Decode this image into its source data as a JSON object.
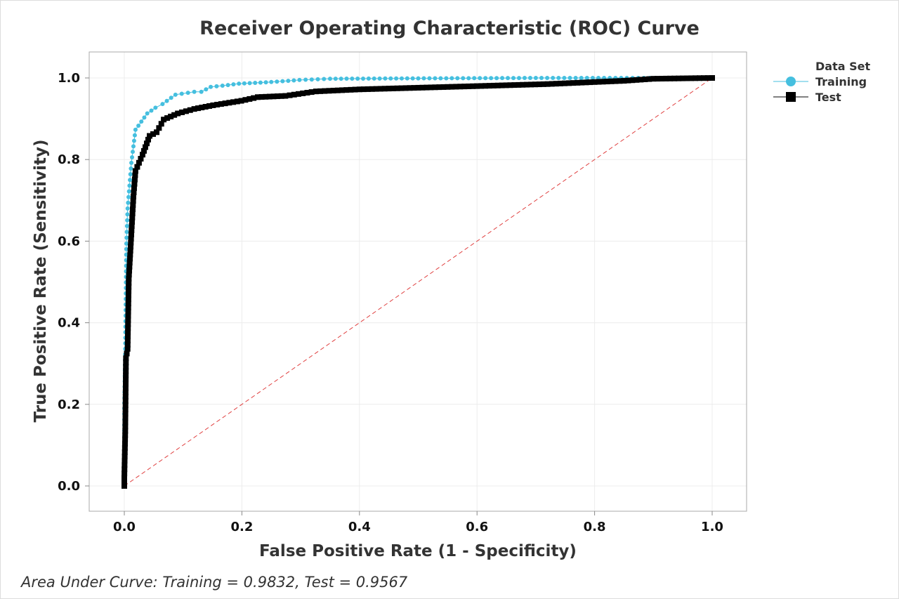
{
  "chart_data": {
    "type": "line",
    "title": "Receiver Operating Characteristic (ROC) Curve",
    "xlabel": "False Positive Rate (1 - Specificity)",
    "ylabel": "True Positive Rate (Sensitivity)",
    "xlim": [
      0,
      1
    ],
    "ylim": [
      0,
      1
    ],
    "xticks": [
      "0.0",
      "0.2",
      "0.4",
      "0.6",
      "0.8",
      "1.0"
    ],
    "yticks": [
      "0.0",
      "0.2",
      "0.4",
      "0.6",
      "0.8",
      "1.0"
    ],
    "grid": true,
    "legend": {
      "title": "Data Set",
      "position": "top-right outside"
    },
    "reference_line": {
      "x": [
        0,
        1
      ],
      "y": [
        0,
        1
      ],
      "color": "#e04040",
      "style": "dashed"
    },
    "series": [
      {
        "name": "Training",
        "color": "#45bfdf",
        "marker": "circle",
        "x": [
          0,
          0,
          0.0016,
          0.0036,
          0.0056,
          0.012,
          0.019,
          0.039,
          0.053,
          0.065,
          0.087,
          0.119,
          0.131,
          0.147,
          0.167,
          0.195,
          0.25,
          0.298,
          0.35,
          0.5,
          0.7,
          1.0
        ],
        "y": [
          0,
          0.19,
          0.336,
          0.594,
          0.68,
          0.792,
          0.873,
          0.913,
          0.927,
          0.936,
          0.959,
          0.966,
          0.966,
          0.978,
          0.981,
          0.986,
          0.99,
          0.995,
          0.998,
          0.999,
          1.0,
          1.0
        ]
      },
      {
        "name": "Test",
        "color": "#000000",
        "marker": "square",
        "x": [
          0,
          0,
          0.0016,
          0.0028,
          0.0056,
          0.0076,
          0.0115,
          0.0155,
          0.019,
          0.031,
          0.043,
          0.055,
          0.067,
          0.091,
          0.119,
          0.151,
          0.199,
          0.227,
          0.274,
          0.326,
          0.4,
          0.55,
          0.6,
          0.72,
          0.8,
          0.85,
          0.9,
          1.0
        ],
        "y": [
          0,
          0.02,
          0.135,
          0.313,
          0.336,
          0.508,
          0.606,
          0.709,
          0.772,
          0.812,
          0.858,
          0.867,
          0.898,
          0.913,
          0.924,
          0.933,
          0.944,
          0.953,
          0.956,
          0.967,
          0.972,
          0.978,
          0.98,
          0.985,
          0.99,
          0.993,
          0.998,
          1.0
        ]
      }
    ]
  },
  "footer": "Area Under Curve: Training = 0.9832, Test = 0.9567"
}
